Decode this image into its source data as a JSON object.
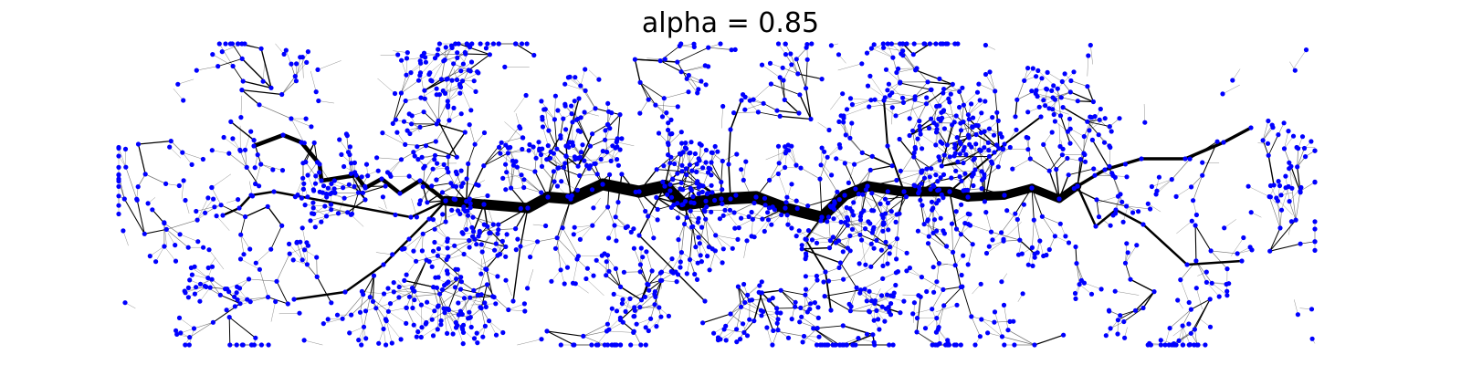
{
  "title": "alpha = 0.85",
  "colors": {
    "node": "#0000ff",
    "edge": "#000000",
    "background": "#ffffff"
  },
  "diagram": {
    "type": "network",
    "description_free": true
  }
}
